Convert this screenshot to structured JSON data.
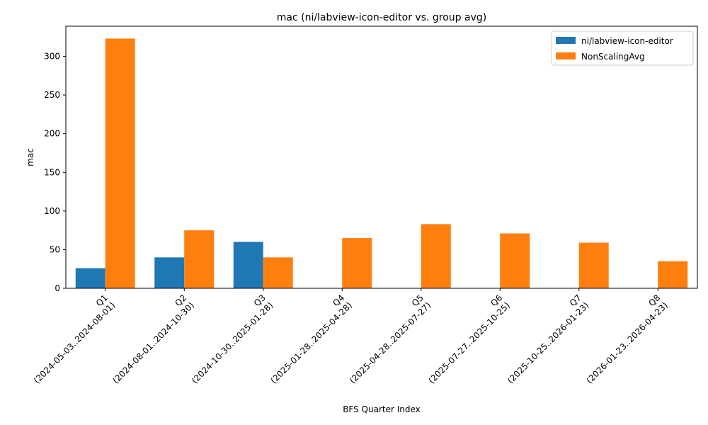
{
  "chart_data": {
    "type": "bar",
    "title": "mac (ni/labview-icon-editor vs. group avg)",
    "xlabel": "BFS Quarter Index",
    "ylabel": "mac",
    "categories": [
      "Q1\n(2024-05-03..2024-08-01)",
      "Q2\n(2024-08-01..2024-10-30)",
      "Q3\n(2024-10-30..2025-01-28)",
      "Q4\n(2025-01-28..2025-04-28)",
      "Q5\n(2025-04-28..2025-07-27)",
      "Q6\n(2025-07-27..2025-10-25)",
      "Q7\n(2025-10-25..2026-01-23)",
      "Q8\n(2026-01-23..2026-04-23)"
    ],
    "series": [
      {
        "name": "ni/labview-icon-editor",
        "color": "#1f77b4",
        "values": [
          26,
          40,
          60,
          0,
          0,
          0,
          0,
          0
        ]
      },
      {
        "name": "NonScalingAvg",
        "color": "#ff7f0e",
        "values": [
          323,
          75,
          40,
          65,
          83,
          71,
          59,
          35
        ]
      }
    ],
    "ylim": [
      0,
      339
    ],
    "yticks": [
      0,
      50,
      100,
      150,
      200,
      250,
      300
    ],
    "legend_position": "top-right",
    "grid": false
  }
}
